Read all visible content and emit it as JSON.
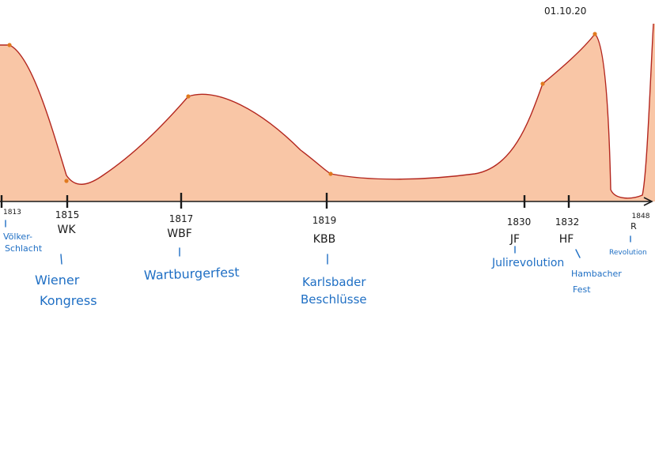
{
  "date": "01.10.20",
  "colors": {
    "fill": "#f9c6a6",
    "curve": "#b3261e",
    "points": "#e07a1f",
    "axis": "#1a1a1a",
    "annotation": "#1f6fc4"
  },
  "events": [
    {
      "year": "1813",
      "abbr": "",
      "name": "Völker- Schlacht"
    },
    {
      "year": "1815",
      "abbr": "WK",
      "name": "Wiener Kongress"
    },
    {
      "year": "1817",
      "abbr": "WBF",
      "name": "Wartburgerfest"
    },
    {
      "year": "1819",
      "abbr": "KBB",
      "name": "Karlsbader Beschlüsse"
    },
    {
      "year": "1830",
      "abbr": "JF",
      "name": "Julirevolution"
    },
    {
      "year": "1832",
      "abbr": "HF",
      "name": "Hambacher Fest"
    },
    {
      "year": "1848",
      "abbr": "R",
      "name": "Revolution"
    }
  ]
}
